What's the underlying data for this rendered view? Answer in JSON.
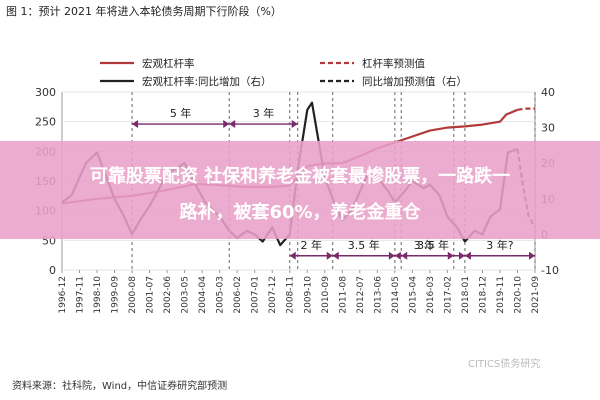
{
  "header": {
    "title": "图 1：预计 2021 年将进入本轮债务周期下行阶段（%）"
  },
  "footer": {
    "source": "资料来源：社科院，Wind，中信证券研究部预测",
    "watermark": "CITICS债务研究"
  },
  "overlay": {
    "line1": "可靠股票配资 社保和养老金被套最惨股票，一路跌一",
    "line2": "路补，被套60%，养老金重仓",
    "color": "#e8a0c8"
  },
  "colors": {
    "leverage": "#b23a3a",
    "yoy": "#222222",
    "cycle_arrow": "#7a2a6a",
    "grid": "#e6e6e6",
    "axis_text": "#333333"
  },
  "chart_data": {
    "type": "line",
    "title": "预计 2021 年将进入本轮债务周期下行阶段（%）",
    "x_ticks": [
      "1996-12",
      "1997-11",
      "1998-10",
      "1999-09",
      "2000-08",
      "2001-07",
      "2002-06",
      "2003-05",
      "2004-04",
      "2005-03",
      "2006-02",
      "2007-01",
      "2007-12",
      "2008-11",
      "2009-10",
      "2010-09",
      "2011-08",
      "2012-07",
      "2013-06",
      "2014-05",
      "2015-04",
      "2016-03",
      "2017-02",
      "2018-01",
      "2018-12",
      "2019-11",
      "2020-10",
      "2021-09"
    ],
    "x_start": "1996-12",
    "x_end": "2021-09",
    "y_left": {
      "ticks": [
        0,
        50,
        100,
        150,
        200,
        250,
        300
      ],
      "range": [
        0,
        300
      ]
    },
    "y_right": {
      "ticks": [
        -10,
        0,
        10,
        20,
        30,
        40
      ],
      "range": [
        -10,
        40
      ]
    },
    "legend": [
      {
        "label": "宏观杠杆率",
        "key": "leverage",
        "style": "solid"
      },
      {
        "label": "杠杆率预测值",
        "key": "leverage_forecast",
        "style": "dashed"
      },
      {
        "label": "宏观杠杆率:同比增加（右）",
        "key": "yoy",
        "style": "solid"
      },
      {
        "label": "同比增加预测值（右）",
        "key": "yoy_forecast",
        "style": "dashed"
      }
    ],
    "series": [
      {
        "name": "宏观杠杆率",
        "axis": "left",
        "style": "solid",
        "points": [
          [
            "1996-12",
            112
          ],
          [
            "1998-10",
            120
          ],
          [
            "2000-08",
            125
          ],
          [
            "2002-06",
            135
          ],
          [
            "2003-12",
            145
          ],
          [
            "2005-03",
            143
          ],
          [
            "2006-06",
            140
          ],
          [
            "2007-12",
            140
          ],
          [
            "2008-11",
            142
          ],
          [
            "2009-10",
            175
          ],
          [
            "2010-09",
            180
          ],
          [
            "2011-08",
            180
          ],
          [
            "2012-07",
            192
          ],
          [
            "2013-06",
            205
          ],
          [
            "2014-05",
            215
          ],
          [
            "2015-04",
            225
          ],
          [
            "2016-03",
            235
          ],
          [
            "2017-02",
            240
          ],
          [
            "2018-01",
            242
          ],
          [
            "2018-12",
            245
          ],
          [
            "2019-11",
            250
          ],
          [
            "2020-03",
            262
          ],
          [
            "2020-10",
            270
          ]
        ]
      },
      {
        "name": "杠杆率预测值",
        "axis": "left",
        "style": "dashed",
        "points": [
          [
            "2020-10",
            270
          ],
          [
            "2021-03",
            272
          ],
          [
            "2021-09",
            272
          ]
        ]
      },
      {
        "name": "宏观杠杆率:同比增加（右）",
        "axis": "right",
        "style": "solid",
        "points": [
          [
            "1996-12",
            9
          ],
          [
            "1997-06",
            11
          ],
          [
            "1998-03",
            20
          ],
          [
            "1998-10",
            23
          ],
          [
            "1999-09",
            10
          ],
          [
            "2000-03",
            5
          ],
          [
            "2000-08",
            0
          ],
          [
            "2001-01",
            4
          ],
          [
            "2001-07",
            8
          ],
          [
            "2002-06",
            17
          ],
          [
            "2003-05",
            20
          ],
          [
            "2004-01",
            13
          ],
          [
            "2004-06",
            9
          ],
          [
            "2005-03",
            5
          ],
          [
            "2005-09",
            1
          ],
          [
            "2006-02",
            -1
          ],
          [
            "2006-08",
            1
          ],
          [
            "2007-01",
            0
          ],
          [
            "2007-06",
            -2
          ],
          [
            "2007-12",
            2
          ],
          [
            "2008-05",
            -3
          ],
          [
            "2008-11",
            0
          ],
          [
            "2009-04",
            18
          ],
          [
            "2009-10",
            35
          ],
          [
            "2010-01",
            37
          ],
          [
            "2010-09",
            16
          ],
          [
            "2011-02",
            10
          ],
          [
            "2011-08",
            4
          ],
          [
            "2012-02",
            7
          ],
          [
            "2012-07",
            12
          ],
          [
            "2013-01",
            18
          ],
          [
            "2013-06",
            16
          ],
          [
            "2014-01",
            12
          ],
          [
            "2014-05",
            9
          ],
          [
            "2014-11",
            12
          ],
          [
            "2015-04",
            15
          ],
          [
            "2015-11",
            13
          ],
          [
            "2016-03",
            14
          ],
          [
            "2016-09",
            11
          ],
          [
            "2017-02",
            5
          ],
          [
            "2017-08",
            2
          ],
          [
            "2018-01",
            -2
          ],
          [
            "2018-07",
            1
          ],
          [
            "2018-12",
            0
          ],
          [
            "2019-05",
            5
          ],
          [
            "2019-11",
            7
          ],
          [
            "2020-04",
            23
          ],
          [
            "2020-10",
            24
          ]
        ]
      },
      {
        "name": "同比增加预测值（右）",
        "axis": "right",
        "style": "dashed",
        "points": [
          [
            "2020-10",
            24
          ],
          [
            "2021-01",
            15
          ],
          [
            "2021-05",
            5
          ],
          [
            "2021-09",
            2
          ]
        ]
      }
    ],
    "cycle_annotations": [
      {
        "label": "5 年",
        "from": "2000-08",
        "to": "2005-09",
        "y": 31
      },
      {
        "label": "3 年",
        "from": "2005-09",
        "to": "2009-04",
        "y": 31
      },
      {
        "label": "2 年",
        "from": "2008-11",
        "to": "2011-02",
        "y": -6
      },
      {
        "label": "3.5 年",
        "from": "2011-02",
        "to": "2014-05",
        "y": -6
      },
      {
        "label": "3 年",
        "from": "2014-05",
        "to": "2017-06",
        "y": -6
      },
      {
        "label": "3.5 年",
        "from": "2014-09",
        "to": "2018-01",
        "y": -6
      },
      {
        "label": "3 年?",
        "from": "2018-01",
        "to": "2021-09",
        "y": -6
      }
    ]
  }
}
